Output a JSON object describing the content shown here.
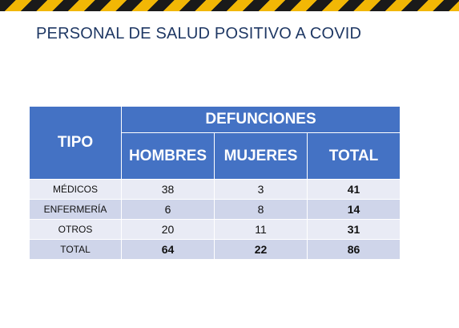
{
  "title": "PERSONAL DE SALUD POSITIVO A COVID",
  "colors": {
    "header_bg": "#4472c4",
    "row_light": "#e9ebf5",
    "row_dark": "#cfd5ea",
    "title_color": "#1f3864",
    "stripe_dark": "#1a1a1a",
    "stripe_yellow": "#f2b705"
  },
  "table": {
    "headers": {
      "tipo": "TIPO",
      "group": "DEFUNCIONES",
      "hombres": "HOMBRES",
      "mujeres": "MUJERES",
      "total": "TOTAL"
    },
    "rows": [
      {
        "tipo": "MÉDICOS",
        "hombres": "38",
        "mujeres": "3",
        "total": "41"
      },
      {
        "tipo": "ENFERMERÍA",
        "hombres": "6",
        "mujeres": "8",
        "total": "14"
      },
      {
        "tipo": "OTROS",
        "hombres": "20",
        "mujeres": "11",
        "total": "31"
      },
      {
        "tipo": "TOTAL",
        "hombres": "64",
        "mujeres": "22",
        "total": "86"
      }
    ]
  }
}
